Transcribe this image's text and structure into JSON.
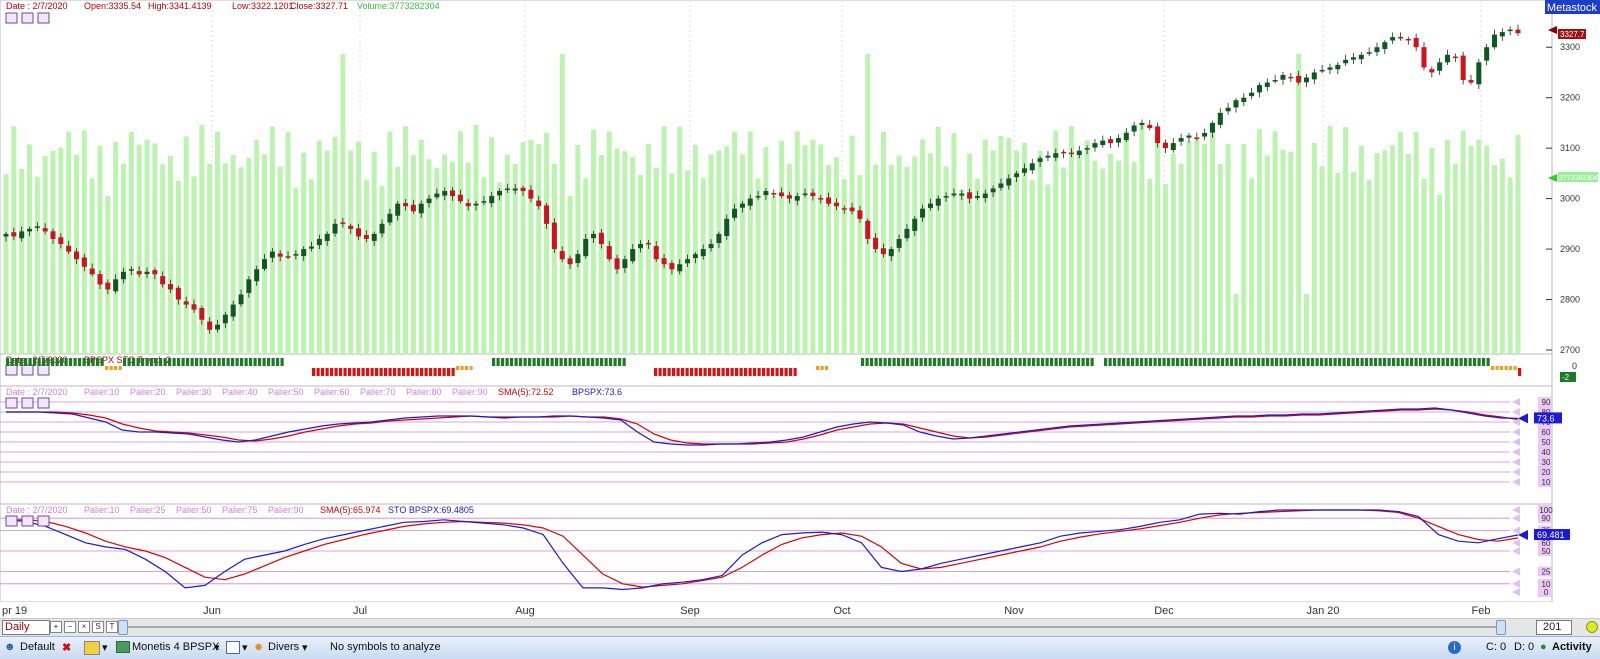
{
  "price_header": {
    "date": "Date : 2/7/2020",
    "open": "Open:3335.54",
    "high": "High:3341.4139",
    "low": "Low:3322.1201",
    "close": "Close:3327.71",
    "volume": "Volume:3773282304"
  },
  "brand": "Metastock",
  "price_axis": {
    "ticks": [
      "3300",
      "3200",
      "3100",
      "3000",
      "2900",
      "2800",
      "2700"
    ],
    "last_price": "3327.7",
    "volume_marker": "3773282304"
  },
  "trend_panel": {
    "header_date": "Date : 2/7/2020",
    "title": "BPSPX STO Trend:-2",
    "axis": [
      "0",
      "-2"
    ]
  },
  "ind1_panel": {
    "header_date": "Date : 2/7/2020",
    "paliers": [
      "Palier:10",
      "Palier:20",
      "Palier:30",
      "Palier:40",
      "Palier:50",
      "Palier:60",
      "Palier:70",
      "Palier:80",
      "Palier:90"
    ],
    "sma": "SMA(5):72.52",
    "main": "BPSPX:73.6",
    "axis": [
      "90",
      "80",
      "70",
      "60",
      "50",
      "40",
      "30",
      "20",
      "10"
    ],
    "last": "73.6"
  },
  "ind2_panel": {
    "header_date": "Date : 2/7/2020",
    "paliers": [
      "Palier:10",
      "Palier:25",
      "Palier:50",
      "Palier:75",
      "Palier:90"
    ],
    "sma": "SMA(5):65.974",
    "main": "STO BPSPX:69.4805",
    "axis": [
      "100",
      "90",
      "75",
      "60",
      "50",
      "25",
      "10",
      "0"
    ],
    "last": "69.481"
  },
  "x_axis": {
    "labels": [
      "pr 19",
      "Jun",
      "Jul",
      "Aug",
      "Sep",
      "Oct",
      "Nov",
      "Dec",
      "Jan 20",
      "Feb"
    ]
  },
  "nav": {
    "period": "Daily",
    "year": "201"
  },
  "status_bar": {
    "profile": "Default",
    "layout": "Monetis 4 BPSPX",
    "divers": "Divers",
    "message": "No symbols to analyze",
    "c": "C: 0",
    "d": "D: 0",
    "activity": "Activity"
  },
  "colors": {
    "up": "#0b5a1e",
    "down": "#d0121b",
    "volume": "#bdf3b0",
    "sma": "#e00000",
    "main": "#1a1ad8",
    "level": "#d080e0",
    "trend_up": "#1e7a2a",
    "trend_down": "#e01010",
    "trend_neutral": "#f0a020"
  },
  "chart_data": [
    {
      "type": "candlestick",
      "title": "",
      "xlabel": "",
      "ylabel": "",
      "x_labels": [
        "pr 19",
        "Jun",
        "Jul",
        "Aug",
        "Sep",
        "Oct",
        "Nov",
        "Dec",
        "Jan 20",
        "Feb"
      ],
      "ylim": [
        2700,
        3350
      ],
      "close": [
        2930,
        2925,
        2935,
        2940,
        2945,
        2935,
        2920,
        2910,
        2895,
        2880,
        2865,
        2850,
        2830,
        2820,
        2840,
        2855,
        2860,
        2850,
        2855,
        2850,
        2830,
        2820,
        2800,
        2790,
        2780,
        2760,
        2740,
        2750,
        2770,
        2790,
        2810,
        2840,
        2860,
        2880,
        2895,
        2885,
        2885,
        2890,
        2900,
        2905,
        2920,
        2930,
        2950,
        2950,
        2940,
        2925,
        2920,
        2930,
        2950,
        2970,
        2990,
        2985,
        2975,
        2990,
        3000,
        3010,
        3015,
        3005,
        2995,
        2985,
        2990,
        2995,
        3005,
        3015,
        3020,
        3020,
        3015,
        3000,
        2985,
        2950,
        2900,
        2880,
        2870,
        2890,
        2920,
        2930,
        2910,
        2880,
        2860,
        2880,
        2900,
        2910,
        2910,
        2880,
        2870,
        2860,
        2870,
        2880,
        2890,
        2900,
        2910,
        2930,
        2960,
        2980,
        2990,
        3000,
        3005,
        3015,
        3010,
        3005,
        3000,
        3005,
        3010,
        3005,
        3000,
        2990,
        2985,
        2980,
        2975,
        2960,
        2920,
        2900,
        2890,
        2900,
        2920,
        2940,
        2960,
        2980,
        2990,
        3000,
        3005,
        3010,
        3010,
        3000,
        3005,
        3010,
        3020,
        3030,
        3040,
        3050,
        3060,
        3070,
        3080,
        3085,
        3090,
        3090,
        3090,
        3095,
        3100,
        3110,
        3115,
        3110,
        3120,
        3130,
        3145,
        3150,
        3140,
        3110,
        3100,
        3110,
        3120,
        3125,
        3120,
        3130,
        3150,
        3170,
        3180,
        3195,
        3200,
        3210,
        3225,
        3230,
        3235,
        3245,
        3240,
        3230,
        3240,
        3250,
        3255,
        3260,
        3265,
        3275,
        3280,
        3285,
        3290,
        3300,
        3310,
        3320,
        3320,
        3315,
        3300,
        3260,
        3250,
        3270,
        3285,
        3280,
        3235,
        3230,
        3270,
        3300,
        3325,
        3330,
        3335,
        3327.71
      ],
      "volume_axis_marker": 3773282304
    },
    {
      "type": "line",
      "title": "",
      "series": [
        {
          "name": "BPSPX",
          "last": 73.6
        },
        {
          "name": "SMA(5)",
          "last": 72.52
        }
      ],
      "levels": [
        10,
        20,
        30,
        40,
        50,
        60,
        70,
        80,
        90
      ],
      "ylim": [
        0,
        100
      ],
      "main_values": [
        80,
        80,
        80,
        79,
        78,
        74,
        70,
        62,
        60,
        60,
        59,
        58,
        55,
        52,
        50,
        52,
        56,
        60,
        63,
        66,
        68,
        69,
        70,
        72,
        74,
        75,
        76,
        76,
        76,
        75,
        74,
        75,
        75,
        76,
        76,
        75,
        74,
        72,
        60,
        50,
        48,
        47,
        47,
        48,
        48,
        49,
        50,
        52,
        55,
        60,
        65,
        68,
        70,
        69,
        67,
        60,
        56,
        53,
        54,
        56,
        58,
        60,
        62,
        64,
        66,
        67,
        68,
        69,
        70,
        71,
        72,
        73,
        74,
        75,
        76,
        76,
        77,
        77,
        78,
        78,
        79,
        80,
        81,
        82,
        83,
        83,
        84,
        82,
        79,
        76,
        74,
        73.6
      ],
      "sma_values": [
        80,
        80,
        80,
        80,
        79,
        77,
        74,
        68,
        64,
        61,
        60,
        59,
        57,
        55,
        52,
        51,
        53,
        56,
        60,
        63,
        66,
        68,
        69,
        71,
        72,
        73,
        74,
        75,
        76,
        75,
        75,
        75,
        75,
        75,
        76,
        75,
        75,
        73,
        68,
        58,
        52,
        49,
        48,
        48,
        48,
        48,
        49,
        50,
        53,
        57,
        62,
        65,
        68,
        69,
        68,
        64,
        60,
        56,
        54,
        55,
        57,
        59,
        61,
        63,
        65,
        66,
        67,
        68,
        69,
        70,
        71,
        72,
        73,
        74,
        75,
        75,
        76,
        76,
        77,
        77,
        78,
        79,
        80,
        81,
        82,
        82,
        83,
        82,
        80,
        77,
        75,
        72.52
      ]
    },
    {
      "type": "line",
      "title": "",
      "series": [
        {
          "name": "STO BPSPX",
          "last": 69.4805
        },
        {
          "name": "SMA(5)",
          "last": 65.974
        }
      ],
      "levels": [
        10,
        25,
        50,
        75,
        90
      ],
      "ylim": [
        0,
        100
      ],
      "main_values": [
        88,
        86,
        80,
        70,
        60,
        55,
        52,
        40,
        25,
        5,
        8,
        25,
        40,
        45,
        50,
        58,
        65,
        70,
        75,
        80,
        85,
        86,
        88,
        86,
        84,
        82,
        78,
        70,
        35,
        5,
        5,
        3,
        5,
        10,
        12,
        15,
        20,
        45,
        60,
        70,
        72,
        73,
        70,
        60,
        30,
        25,
        28,
        35,
        40,
        45,
        50,
        55,
        60,
        68,
        72,
        74,
        76,
        80,
        85,
        88,
        95,
        96,
        95,
        98,
        100,
        100,
        100,
        100,
        100,
        100,
        98,
        92,
        70,
        62,
        60,
        65,
        69.48
      ],
      "sma_values": [
        88,
        88,
        86,
        80,
        72,
        62,
        55,
        50,
        42,
        30,
        18,
        15,
        22,
        32,
        42,
        50,
        58,
        64,
        70,
        75,
        80,
        83,
        85,
        86,
        85,
        84,
        82,
        78,
        68,
        45,
        22,
        10,
        6,
        8,
        10,
        14,
        18,
        30,
        45,
        58,
        66,
        70,
        72,
        68,
        55,
        35,
        28,
        30,
        35,
        40,
        45,
        50,
        55,
        62,
        67,
        71,
        74,
        77,
        81,
        85,
        90,
        94,
        96,
        97,
        98,
        99,
        100,
        100,
        100,
        99,
        97,
        90,
        80,
        70,
        64,
        62,
        65.97
      ]
    }
  ]
}
